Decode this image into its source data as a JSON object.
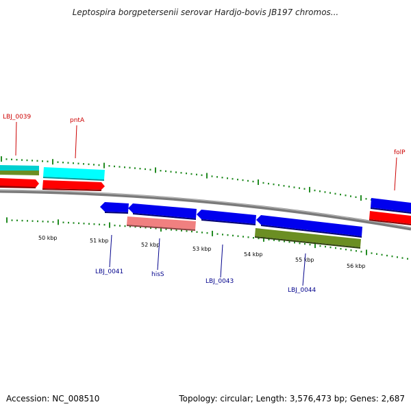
{
  "title": "Leptospira borgpetersenii serovar Hardjo-bovis JB197 chromos...",
  "footer": {
    "accession": "Accession: NC_008510",
    "summary": "Topology: circular; Length: 3,576,473 bp; Genes: 2,687"
  },
  "colors": {
    "backbone": "#808080",
    "ticks": "#228b22",
    "red": "#ff0000",
    "cyan": "#00e5e5",
    "olive": "#6b8e23",
    "blue": "#0000ee",
    "pink": "#f08080",
    "label_red": "#cc0000",
    "label_blue": "#00008b"
  },
  "scale_labels": [
    "50 kbp",
    "51 kbp",
    "52 kbp",
    "53 kbp",
    "54 kbp",
    "55 kbp",
    "56 kbp"
  ],
  "gene_labels": {
    "top": [
      "LBJ_0039",
      "pntA",
      "folP"
    ],
    "bottom": [
      "LBJ_0041",
      "hisS",
      "LBJ_0043",
      "LBJ_0044"
    ]
  }
}
